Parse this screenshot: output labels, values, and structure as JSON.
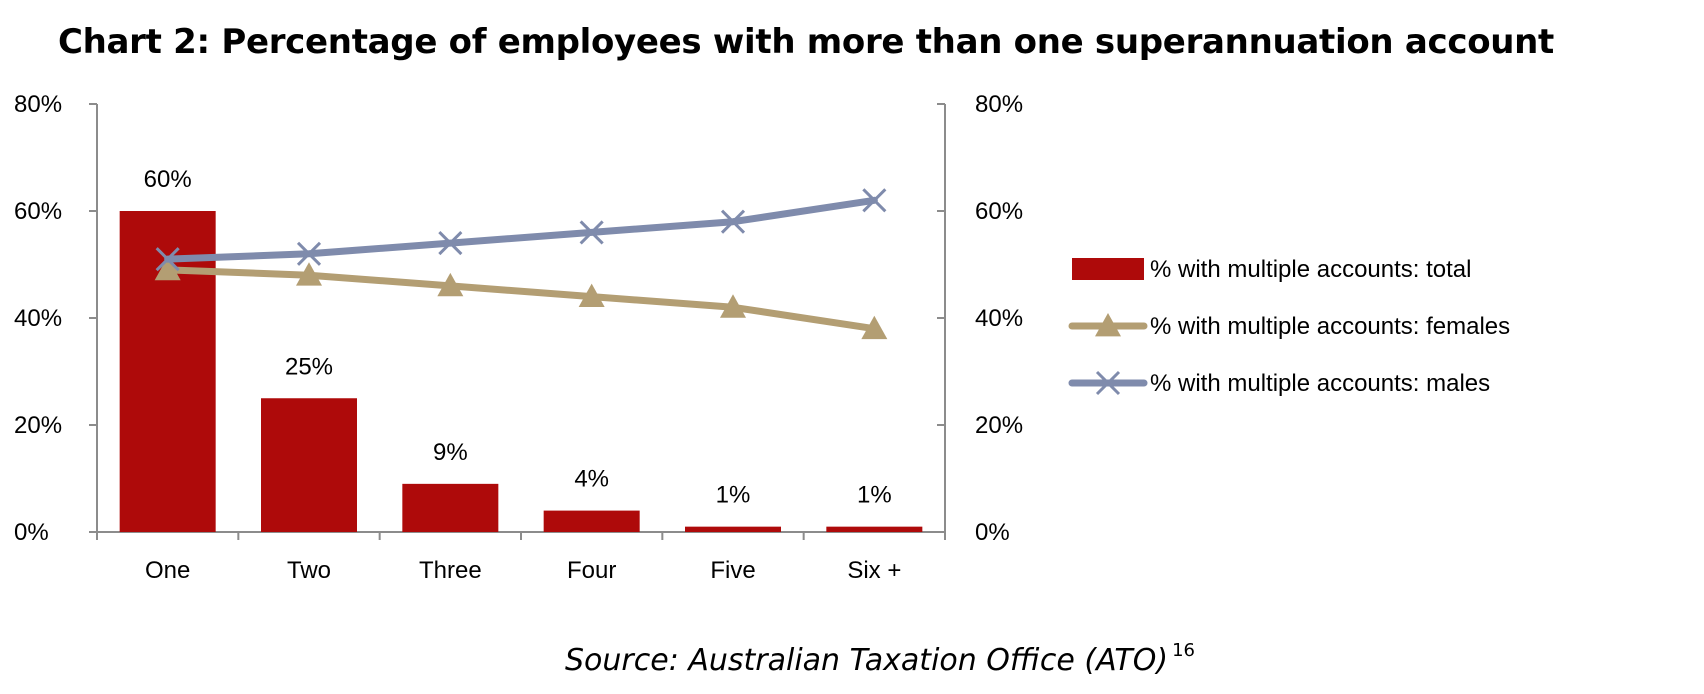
{
  "title": "Chart 2: Percentage of employees with more than one superannuation account",
  "source": {
    "text": "Source: Australian Taxation Office (ATO)",
    "footnote": "16"
  },
  "colors": {
    "bar": "#AE0A0A",
    "females": "#B39E73",
    "males": "#7F8BAC",
    "axis": "#8C8C8C"
  },
  "chart_data": {
    "type": "bar",
    "categories": [
      "One",
      "Two",
      "Three",
      "Four",
      "Five",
      "Six +"
    ],
    "series": [
      {
        "name": "% with multiple accounts: total",
        "kind": "bar",
        "axis": "left",
        "values": [
          60,
          25,
          9,
          4,
          1,
          1
        ],
        "data_labels": [
          "60%",
          "25%",
          "9%",
          "4%",
          "1%",
          "1%"
        ]
      },
      {
        "name": "% with multiple accounts: females",
        "kind": "line",
        "marker": "triangle",
        "axis": "right",
        "values": [
          49,
          48,
          46,
          44,
          42,
          38
        ]
      },
      {
        "name": "% with multiple accounts: males",
        "kind": "line",
        "marker": "x",
        "axis": "right",
        "values": [
          51,
          52,
          54,
          56,
          58,
          62
        ]
      }
    ],
    "ylim": [
      0,
      80
    ],
    "y2lim": [
      0,
      80
    ],
    "yticks": [
      0,
      20,
      40,
      60,
      80
    ],
    "ytick_labels": [
      "0%",
      "20%",
      "40%",
      "60%",
      "80%"
    ],
    "y2tick_labels": [
      "0%",
      "20%",
      "40%",
      "60%",
      "80%"
    ],
    "grid": false,
    "legend_position": "right"
  }
}
